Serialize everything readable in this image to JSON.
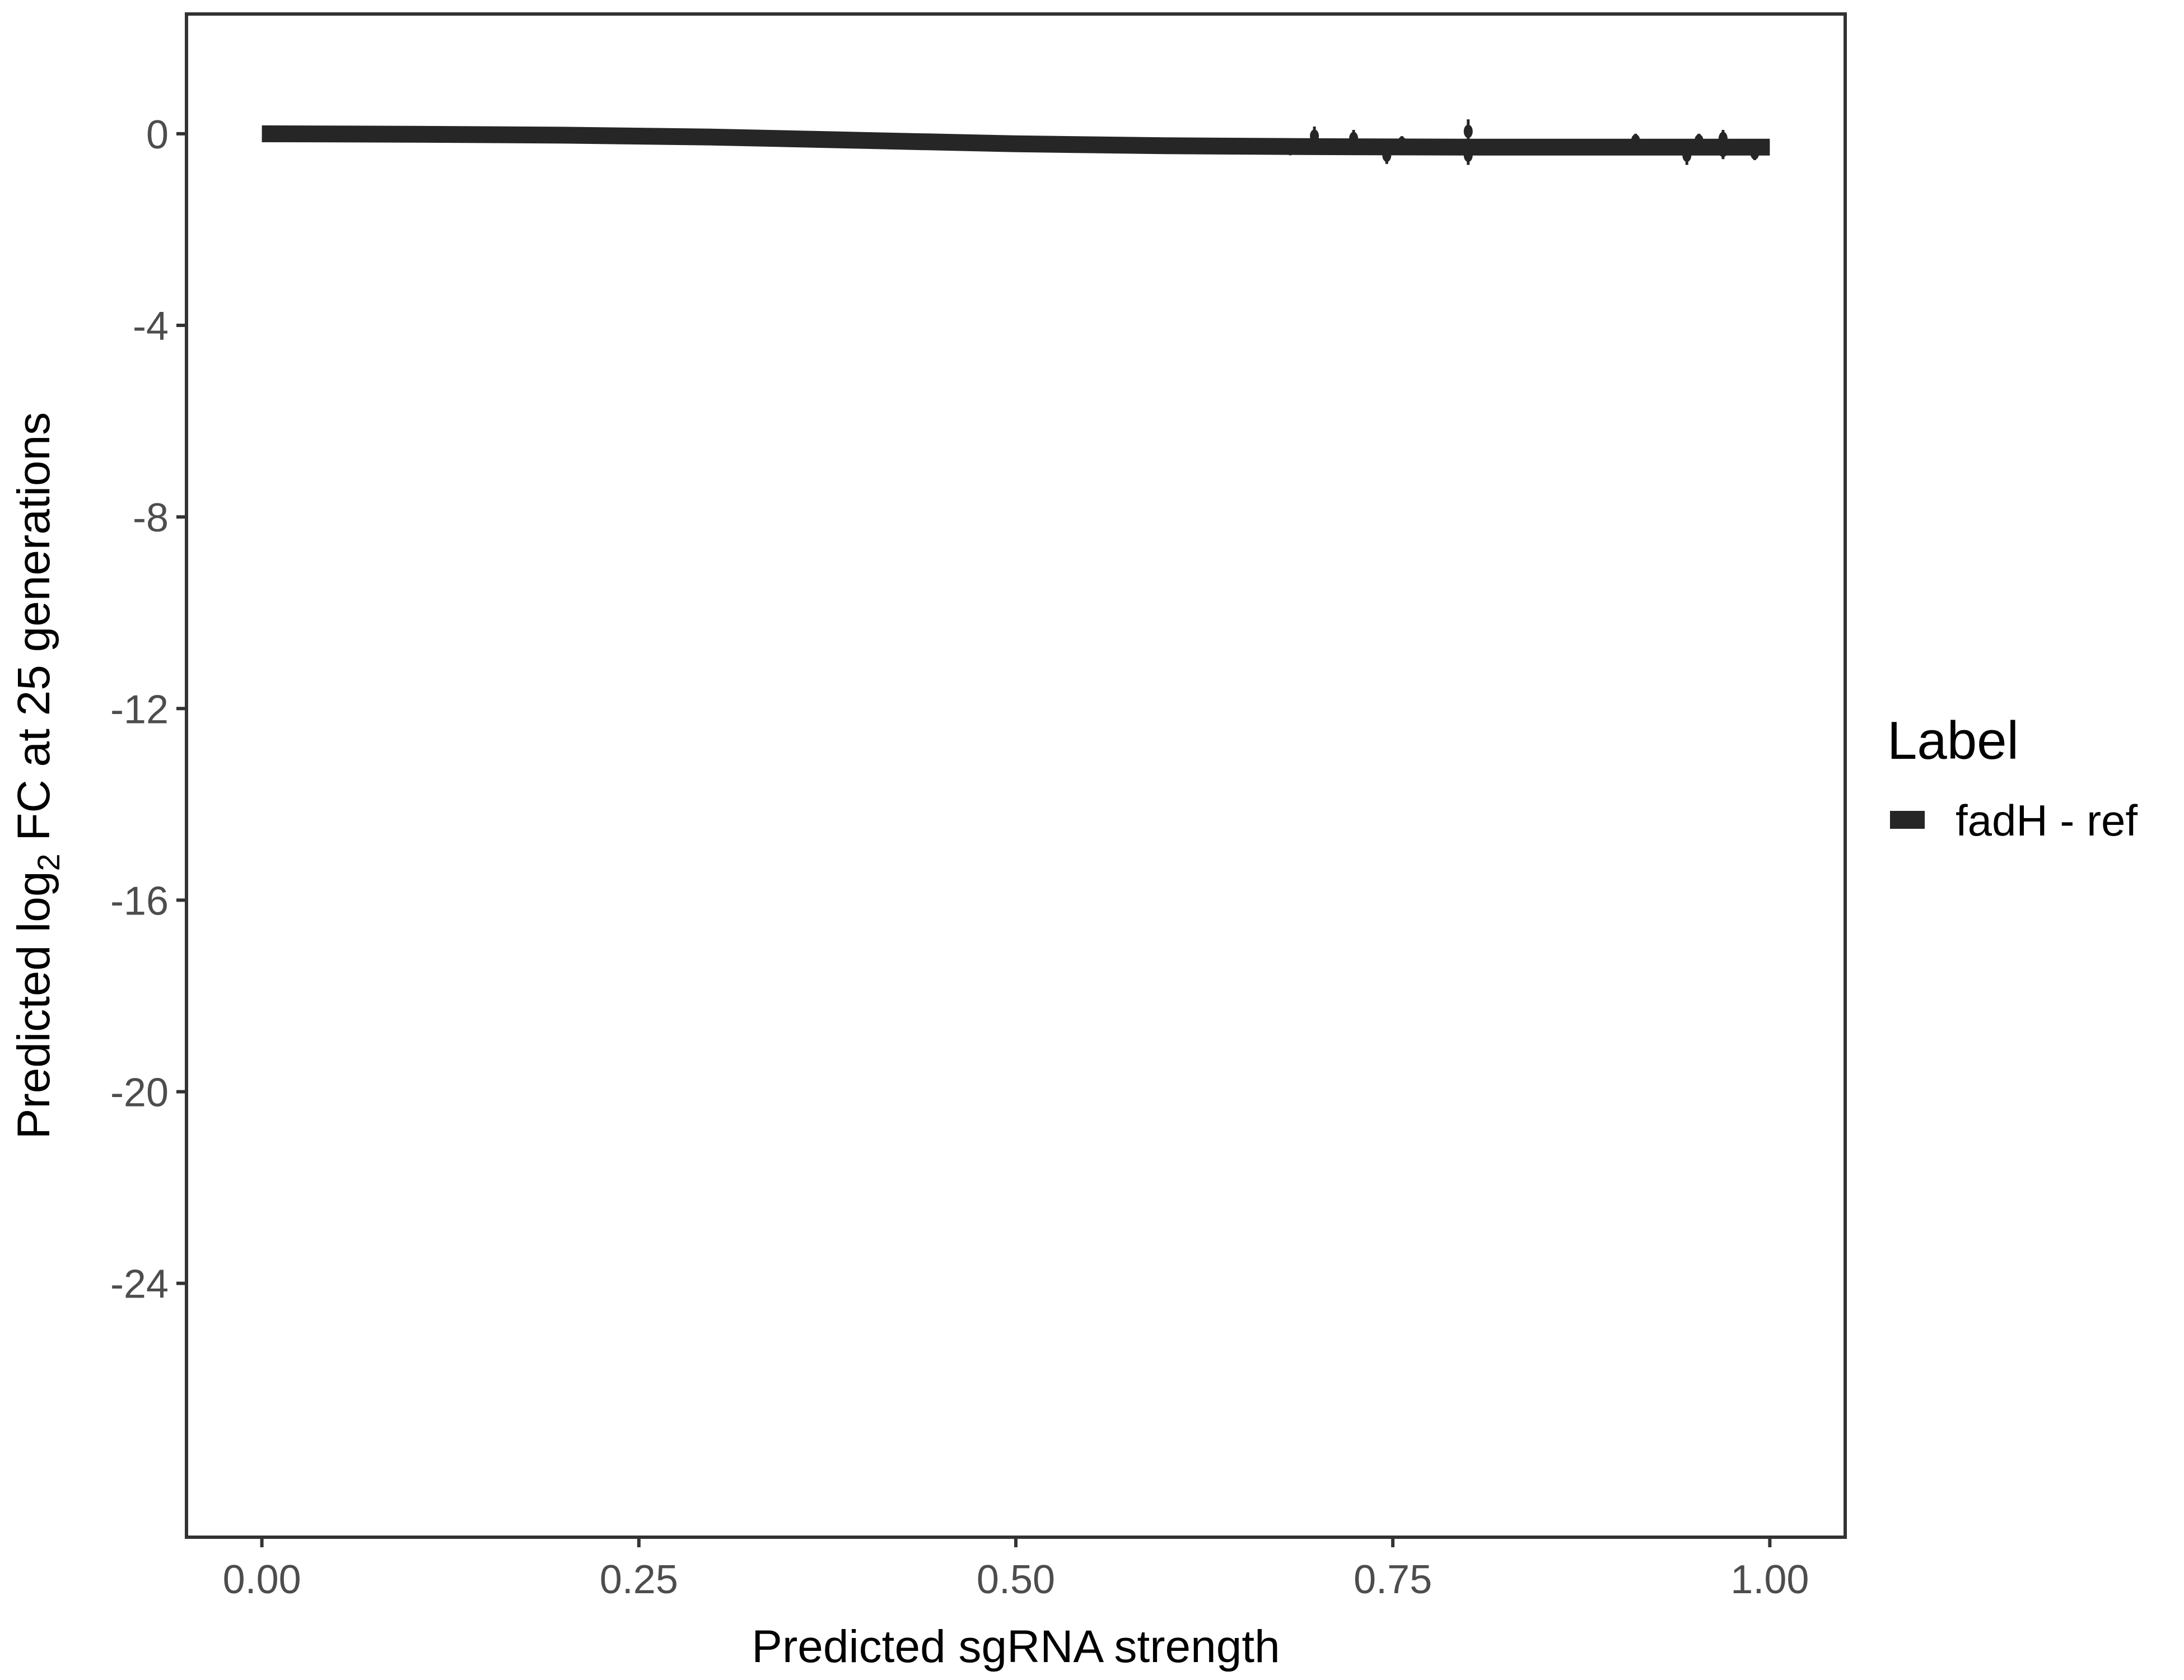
{
  "chart_data": {
    "type": "line",
    "title": "",
    "xlabel": "Predicted sgRNA strength",
    "ylabel_parts": [
      "Predicted  log",
      "2",
      " FC at 25 generations"
    ],
    "xlim": [
      -0.05,
      1.05
    ],
    "ylim": [
      -29.3,
      2.5
    ],
    "x_ticks": [
      0,
      0.25,
      0.5,
      0.75,
      1
    ],
    "x_tick_labels": [
      "0.00",
      "0.25",
      "0.50",
      "0.75",
      "1.00"
    ],
    "y_ticks": [
      0,
      -4,
      -8,
      -12,
      -16,
      -20,
      -24
    ],
    "y_tick_labels": [
      "0",
      "-4",
      "-8",
      "-12",
      "-16",
      "-20",
      "-24"
    ],
    "grid": false,
    "legend": {
      "title": "Label",
      "placement": "right",
      "entries": [
        "fadH - ref"
      ]
    },
    "colors": {
      "series": "#262626",
      "ribbon": "#bdbdbd",
      "frame": "#333333"
    },
    "series": [
      {
        "name": "fadH - ref",
        "fit": {
          "x": [
            0,
            0.1,
            0.2,
            0.3,
            0.4,
            0.5,
            0.6,
            0.7,
            0.8,
            0.9,
            1.0
          ],
          "y": [
            0,
            -0.01,
            -0.03,
            -0.07,
            -0.14,
            -0.21,
            -0.25,
            -0.27,
            -0.28,
            -0.28,
            -0.28
          ],
          "ribbon_low": [
            -0.18,
            -0.17,
            -0.18,
            -0.2,
            -0.24,
            -0.3,
            -0.34,
            -0.36,
            -0.37,
            -0.37,
            -0.37
          ],
          "ribbon_high": [
            0.05,
            0.05,
            0.03,
            0.0,
            -0.06,
            -0.12,
            -0.15,
            -0.17,
            -0.18,
            -0.18,
            -0.18
          ]
        },
        "points": {
          "x": [
            0.682,
            0.698,
            0.724,
            0.746,
            0.756,
            0.8,
            0.8,
            0.911,
            0.928,
            0.945,
            0.953,
            0.969,
            0.969,
            0.99
          ],
          "y": [
            -0.3,
            -0.05,
            -0.1,
            -0.45,
            -0.2,
            0.05,
            -0.45,
            -0.15,
            -0.3,
            -0.45,
            -0.15,
            -0.1,
            -0.35,
            -0.4
          ],
          "err": [
            0.15,
            0.2,
            0.18,
            0.18,
            0.15,
            0.25,
            0.2,
            0.15,
            0.12,
            0.2,
            0.15,
            0.18,
            0.18,
            0.15
          ]
        }
      }
    ]
  }
}
